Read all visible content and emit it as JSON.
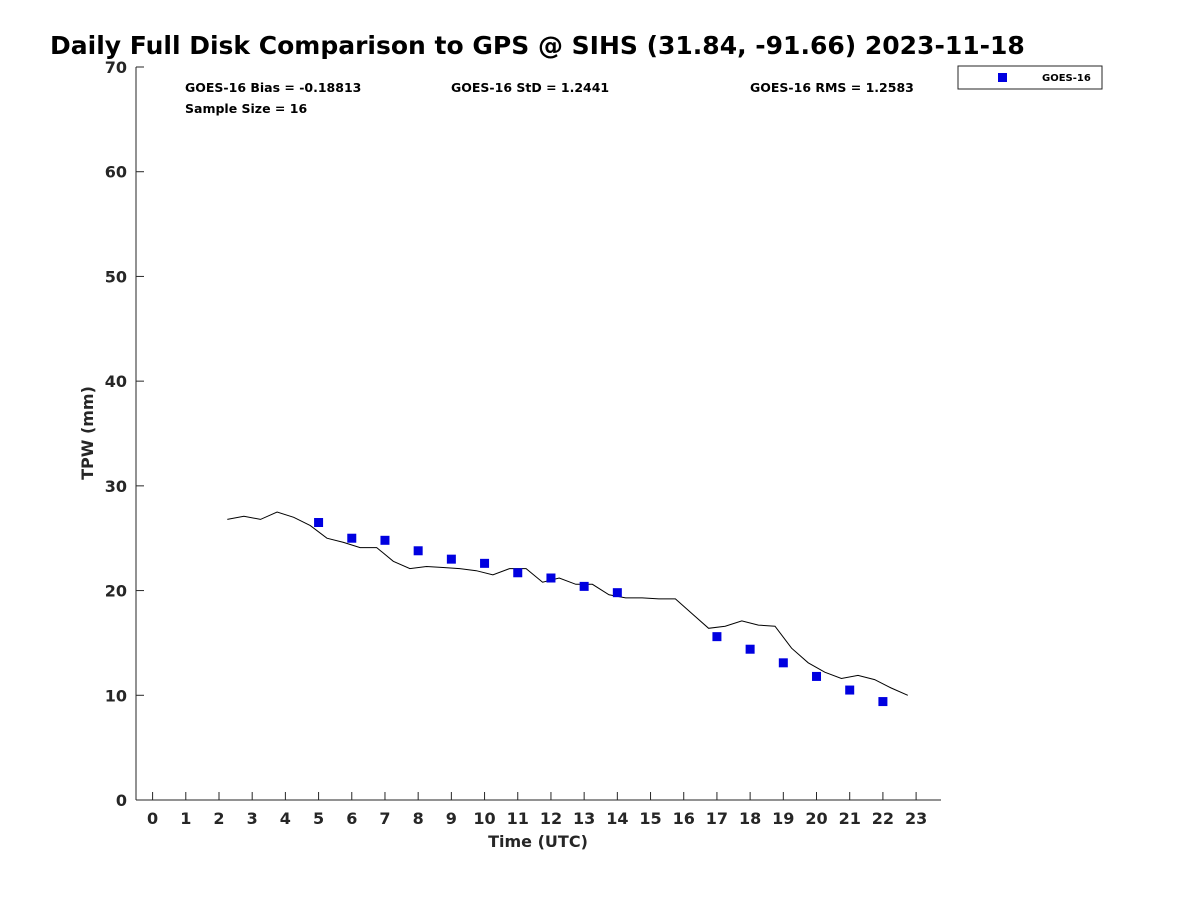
{
  "chart_data": {
    "type": "line",
    "title": "Daily Full Disk Comparison to GPS @ SIHS (31.84, -91.66) 2023-11-18",
    "xlabel": "Time (UTC)",
    "ylabel": "TPW (mm)",
    "xlim": [
      -0.5,
      23.75
    ],
    "ylim": [
      0,
      70
    ],
    "x_ticks": [
      0,
      1,
      2,
      3,
      4,
      5,
      6,
      7,
      8,
      9,
      10,
      11,
      12,
      13,
      14,
      15,
      16,
      17,
      18,
      19,
      20,
      21,
      22,
      23
    ],
    "y_ticks": [
      0,
      10,
      20,
      30,
      40,
      50,
      60,
      70
    ],
    "grid": false,
    "legend_position": "top-right",
    "stats": {
      "bias": "GOES-16 Bias = -0.18813",
      "std": "GOES-16 StD = 1.2441",
      "rms": "GOES-16 RMS = 1.2583",
      "sample_size": "Sample Size = 16"
    },
    "series": [
      {
        "name": "GOES-16",
        "kind": "scatter",
        "marker": "square",
        "color": "#0000e0",
        "x": [
          5,
          6,
          7,
          8,
          9,
          10,
          11,
          12,
          13,
          14,
          17,
          18,
          19,
          20,
          21,
          22
        ],
        "y": [
          26.5,
          25.0,
          24.8,
          23.8,
          23.0,
          22.6,
          21.7,
          21.2,
          20.4,
          19.8,
          15.6,
          14.4,
          13.1,
          11.8,
          10.5,
          9.4
        ]
      },
      {
        "kind": "line",
        "color": "#000000",
        "x": [
          2.25,
          2.75,
          3.25,
          3.75,
          4.25,
          4.75,
          5.25,
          5.75,
          6.25,
          6.75,
          7.25,
          7.75,
          8.25,
          8.75,
          9.25,
          9.75,
          10.25,
          10.75,
          11.25,
          11.75,
          12.25,
          12.75,
          13.25,
          13.75,
          14.25,
          14.75,
          15.25,
          15.75,
          16.25,
          16.75,
          17.25,
          17.75,
          18.25,
          18.75,
          19.25,
          19.75,
          20.25,
          20.75,
          21.25,
          21.75,
          22.25,
          22.75
        ],
        "y": [
          26.8,
          27.1,
          26.8,
          27.5,
          27.0,
          26.2,
          25.0,
          24.6,
          24.1,
          24.1,
          22.8,
          22.1,
          22.3,
          22.2,
          22.1,
          21.9,
          21.5,
          22.1,
          22.1,
          20.8,
          21.2,
          20.6,
          20.6,
          19.6,
          19.3,
          19.3,
          19.2,
          19.2,
          17.8,
          16.4,
          16.6,
          17.1,
          16.7,
          16.6,
          14.5,
          13.1,
          12.2,
          11.6,
          11.9,
          11.5,
          10.7,
          10.0
        ]
      }
    ]
  }
}
